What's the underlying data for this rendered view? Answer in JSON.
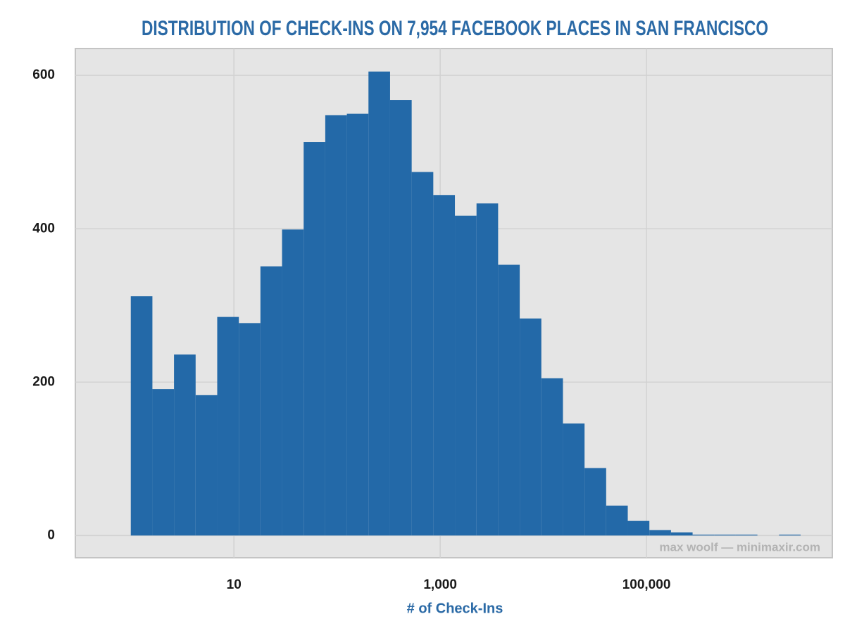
{
  "chart_data": {
    "type": "histogram",
    "title": "DISTRIBUTION OF CHECK-INS ON 7,954 FACEBOOK PLACES IN SAN FRANCISCO",
    "xlabel": "# of Check-Ins",
    "credit": "max woolf — minimaxir.com",
    "color": "#2369a8",
    "xscale": "log",
    "grid": true,
    "bins": [
      1,
      1.62,
      2.624,
      4.252,
      6.887,
      11.16,
      18.07,
      29.28,
      47.43,
      76.84,
      124.5,
      201.6,
      326.6,
      529.1,
      857.2,
      1389,
      2250,
      3644,
      5904,
      9564,
      15494,
      25100,
      40662,
      65872,
      106712,
      172874,
      280056,
      453691,
      734980,
      1190668,
      1928882,
      3124789
    ],
    "values": [
      312,
      191,
      236,
      183,
      285,
      277,
      351,
      399,
      513,
      548,
      550,
      605,
      568,
      474,
      444,
      417,
      433,
      353,
      283,
      205,
      146,
      88,
      39,
      19,
      7,
      4,
      1,
      1,
      1,
      0,
      1
    ],
    "xlim": [
      0.29,
      6340000
    ],
    "xticks": [
      10,
      {
        "value": 1000,
        "label": "1,000"
      },
      {
        "value": 100000,
        "label": "100,000"
      }
    ],
    "ylim": [
      -29,
      635
    ],
    "yticks": [
      0,
      200,
      400,
      600
    ]
  }
}
